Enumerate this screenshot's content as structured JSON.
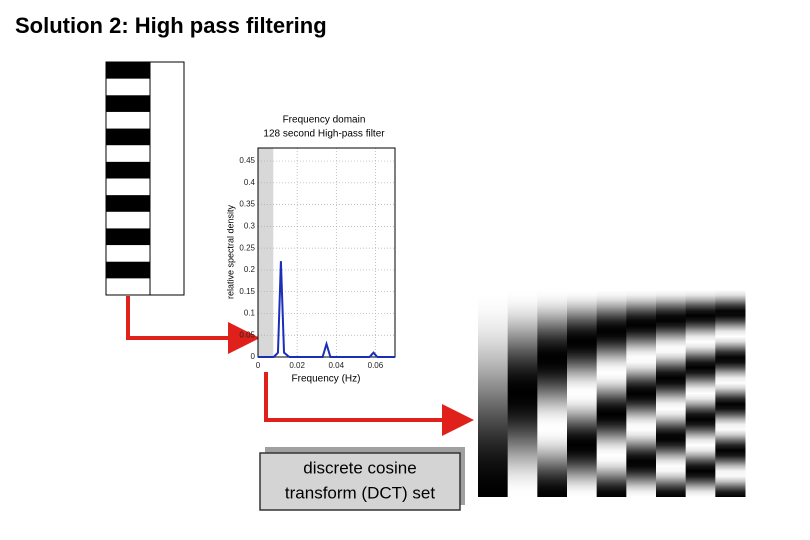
{
  "title": "Solution 2: High pass filtering",
  "dct_label": [
    "discrete cosine",
    "transform (DCT) set"
  ],
  "chart_data": {
    "type": "line",
    "title": "Frequency domain",
    "subtitle": "128 second High-pass filter",
    "x_label": "Frequency (Hz)",
    "y_label": "relative spectral density",
    "x": [
      0,
      0.008,
      0.0102,
      0.0117,
      0.0133,
      0.016,
      0.033,
      0.035,
      0.037,
      0.057,
      0.059,
      0.061,
      0.07
    ],
    "values": [
      0,
      0,
      0.01,
      0.22,
      0.01,
      0,
      0,
      0.03,
      0,
      0,
      0.01,
      0,
      0
    ],
    "color": "#1a2fb8",
    "filter_band": [
      0,
      0.0078
    ],
    "xlim": [
      0,
      0.07
    ],
    "xticks": [
      0,
      0.02,
      0.04,
      0.06
    ],
    "ylim": [
      0,
      0.48
    ],
    "yticks": [
      0,
      0.05,
      0.1,
      0.15,
      0.2,
      0.25,
      0.3,
      0.35,
      0.4,
      0.45
    ],
    "grid": true
  }
}
